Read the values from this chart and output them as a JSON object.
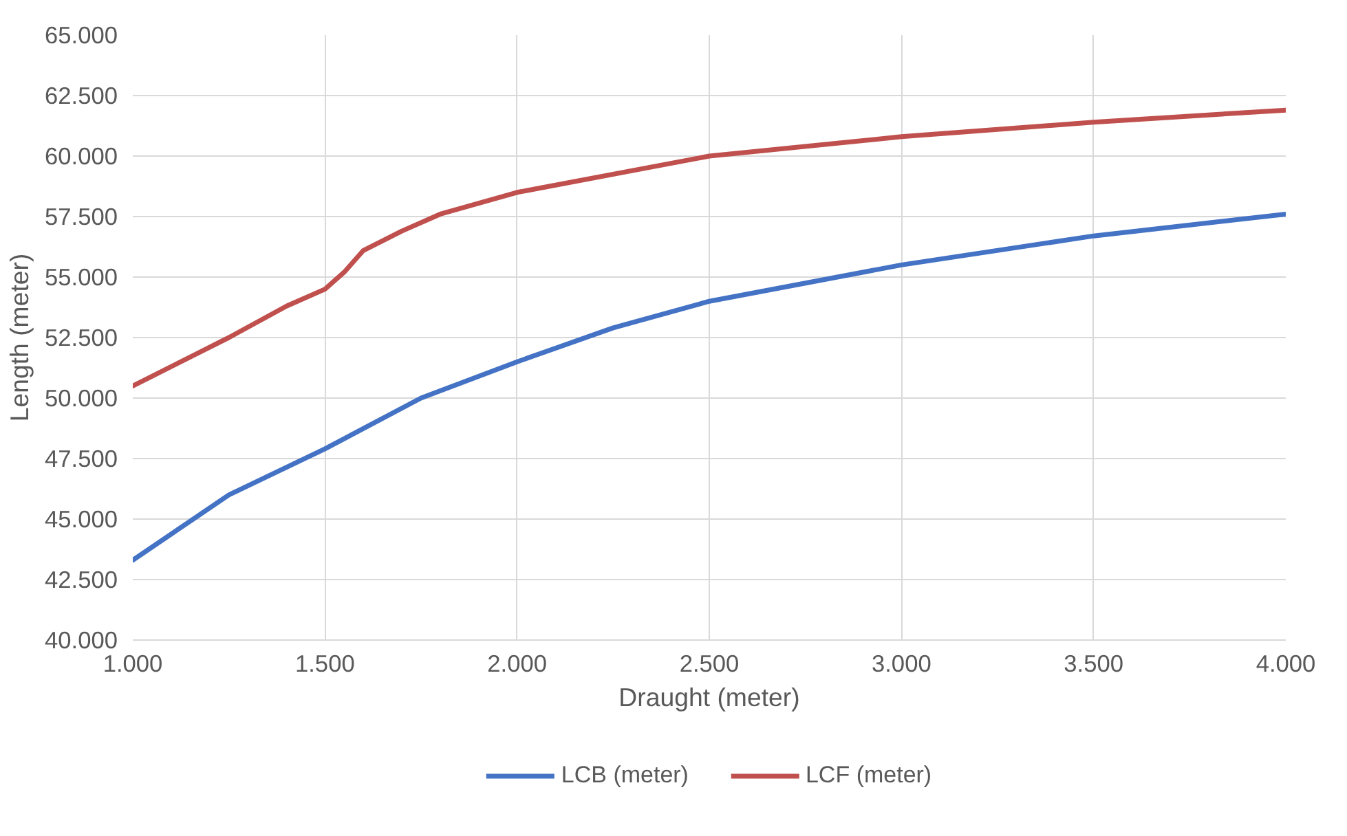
{
  "chart_data": {
    "type": "line",
    "xlabel": "Draught (meter)",
    "ylabel": "Length (meter)",
    "xlim": [
      1.0,
      4.0
    ],
    "ylim": [
      40.0,
      65.0
    ],
    "xticks": [
      {
        "value": 1.0,
        "label": "1.000"
      },
      {
        "value": 1.5,
        "label": "1.500"
      },
      {
        "value": 2.0,
        "label": "2.000"
      },
      {
        "value": 2.5,
        "label": "2.500"
      },
      {
        "value": 3.0,
        "label": "3.000"
      },
      {
        "value": 3.5,
        "label": "3.500"
      },
      {
        "value": 4.0,
        "label": "4.000"
      }
    ],
    "yticks": [
      {
        "value": 40.0,
        "label": "40.000"
      },
      {
        "value": 42.5,
        "label": "42.500"
      },
      {
        "value": 45.0,
        "label": "45.000"
      },
      {
        "value": 47.5,
        "label": "47.500"
      },
      {
        "value": 50.0,
        "label": "50.000"
      },
      {
        "value": 52.5,
        "label": "52.500"
      },
      {
        "value": 55.0,
        "label": "55.000"
      },
      {
        "value": 57.5,
        "label": "57.500"
      },
      {
        "value": 60.0,
        "label": "60.000"
      },
      {
        "value": 62.5,
        "label": "62.500"
      },
      {
        "value": 65.0,
        "label": "65.000"
      }
    ],
    "grid": true,
    "legend": "bottom",
    "marker": "none",
    "line_style": "solid",
    "series": [
      {
        "name": "LCB (meter)",
        "color": "#4472c4",
        "x": [
          1.0,
          1.25,
          1.5,
          1.75,
          2.0,
          2.25,
          2.5,
          3.0,
          3.5,
          4.0
        ],
        "values": [
          43.3,
          46.0,
          47.9,
          50.0,
          51.5,
          52.9,
          54.0,
          55.5,
          56.7,
          57.6
        ]
      },
      {
        "name": "LCF (meter)",
        "color": "#c0504d",
        "x": [
          1.0,
          1.25,
          1.4,
          1.5,
          1.55,
          1.6,
          1.7,
          1.8,
          2.0,
          2.5,
          3.0,
          3.5,
          4.0
        ],
        "values": [
          50.5,
          52.5,
          53.8,
          54.5,
          55.2,
          56.1,
          56.9,
          57.6,
          58.5,
          60.0,
          60.8,
          61.4,
          61.9
        ]
      }
    ]
  }
}
